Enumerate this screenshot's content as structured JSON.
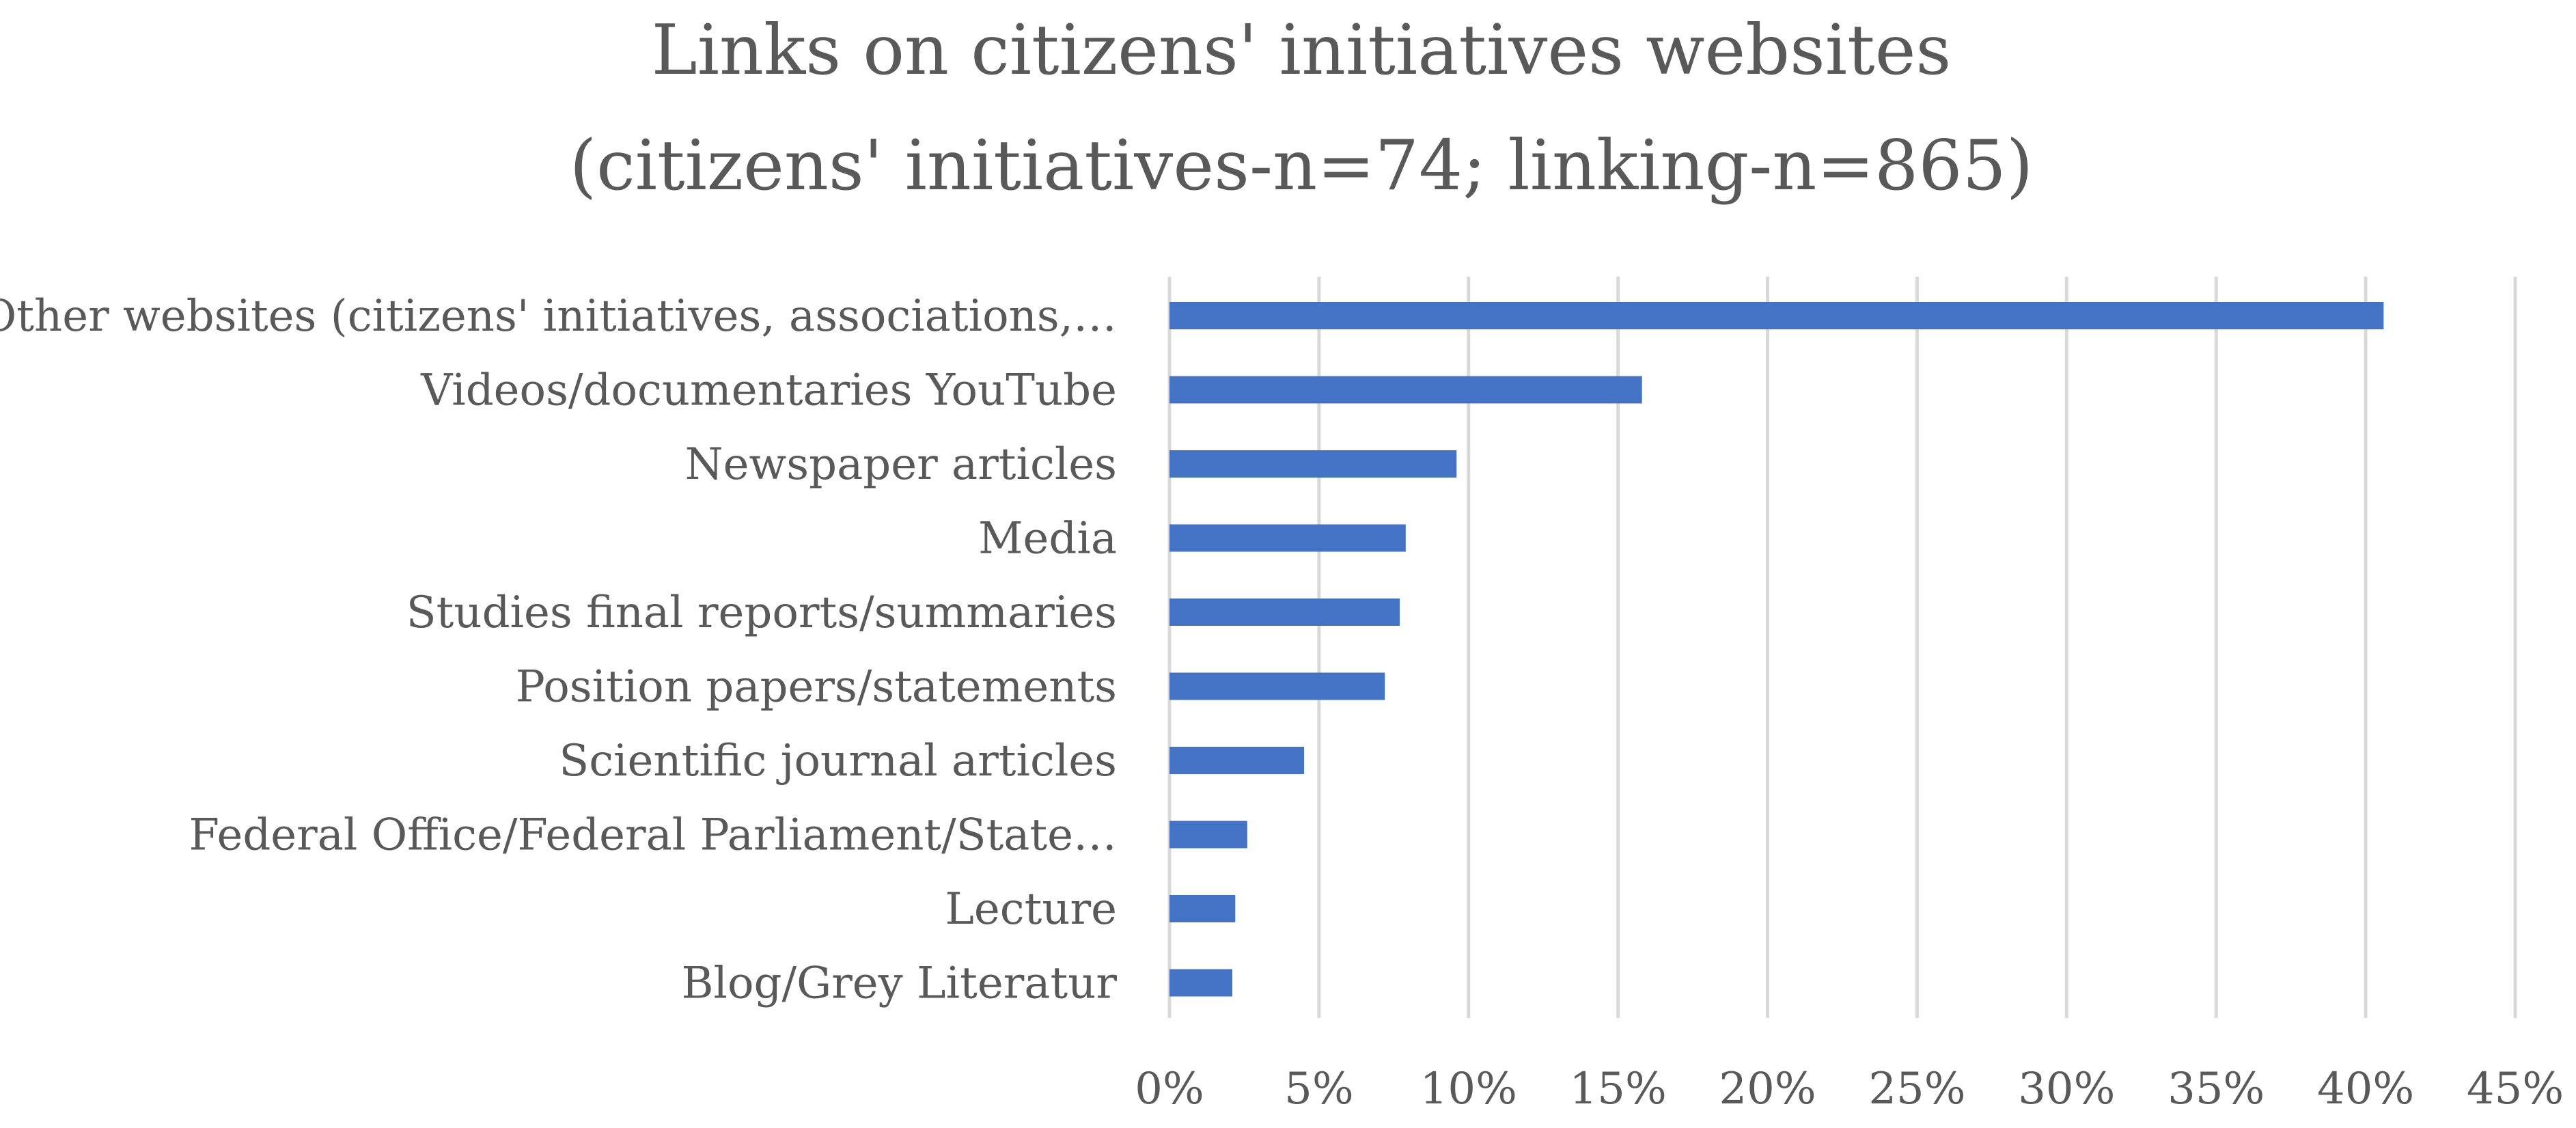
{
  "chart_data": {
    "type": "bar",
    "orientation": "horizontal",
    "title": "Links on citizens' initiatives websites",
    "subtitle": "(citizens' initiatives-n=74; linking-n=865)",
    "xlabel": "",
    "ylabel": "",
    "categories": [
      "Other websites (citizens' initiatives, associations,…",
      "Videos/documentaries YouTube",
      "Newspaper articles",
      "Media",
      "Studies final reports/summaries",
      "Position papers/statements",
      "Scientific journal articles",
      "Federal Office/Federal Parliament/State…",
      "Lecture",
      "Blog/Grey Literatur"
    ],
    "values": [
      40.6,
      15.8,
      9.6,
      7.9,
      7.7,
      7.2,
      4.5,
      2.6,
      2.2,
      2.1
    ],
    "xlim": [
      0,
      45
    ],
    "tick_values": [
      0,
      5,
      10,
      15,
      20,
      25,
      30,
      35,
      40,
      45
    ],
    "tick_labels": [
      "0%",
      "5%",
      "10%",
      "15%",
      "20%",
      "25%",
      "30%",
      "35%",
      "40%",
      "45%"
    ],
    "grid": true,
    "legend": "none",
    "bar_color": "#4472c4"
  }
}
